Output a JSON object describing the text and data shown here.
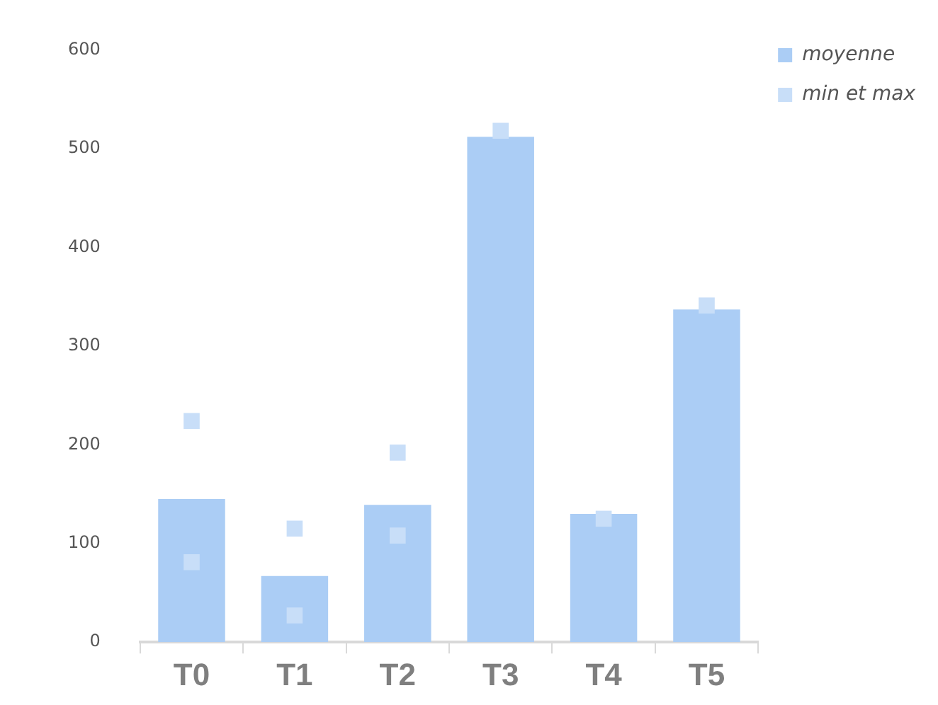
{
  "chart_data": {
    "type": "bar",
    "categories": [
      "T0",
      "T1",
      "T2",
      "T3",
      "T4",
      "T5"
    ],
    "series": [
      {
        "name": "moyenne",
        "color": "#abcdf5",
        "values": [
          145,
          67,
          139,
          512,
          130,
          337
        ]
      },
      {
        "name": "min et max",
        "type": "scatter",
        "color": "#c8def8",
        "x": [
          "T0",
          "T0",
          "T1",
          "T1",
          "T2",
          "T2",
          "T3",
          "T4",
          "T5"
        ],
        "values": [
          224,
          81,
          115,
          27,
          192,
          108,
          518,
          125,
          341
        ]
      }
    ],
    "ylim": [
      0,
      600
    ],
    "yticks": [
      0,
      100,
      200,
      300,
      400,
      500,
      600
    ],
    "grid": false,
    "legend": "top right",
    "marker": "square"
  }
}
